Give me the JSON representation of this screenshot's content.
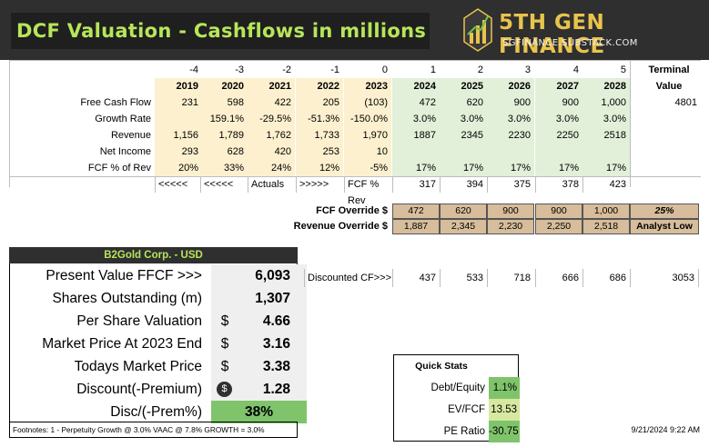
{
  "header": {
    "title": "DCF Valuation - Cashflows in millions",
    "brand": "5TH GEN FINANCE",
    "brand_url": "SGFINANCE.SUBSTACK.COM"
  },
  "periods": [
    "-4",
    "-3",
    "-2",
    "-1",
    "0",
    "1",
    "2",
    "3",
    "4",
    "5"
  ],
  "years": [
    "2019",
    "2020",
    "2021",
    "2022",
    "2023",
    "2024",
    "2025",
    "2026",
    "2027",
    "2028"
  ],
  "terminal": {
    "label1": "Terminal",
    "label2": "Value",
    "fcf": "4801"
  },
  "rows": [
    {
      "label": "Free Cash Flow",
      "values": [
        "231",
        "598",
        "422",
        "205",
        "(103)",
        "472",
        "620",
        "900",
        "900",
        "1,000"
      ]
    },
    {
      "label": "Growth Rate",
      "values": [
        "",
        "159.1%",
        "-29.5%",
        "-51.3%",
        "-150.0%",
        "3.0%",
        "3.0%",
        "3.0%",
        "3.0%",
        "3.0%"
      ]
    },
    {
      "label": "Revenue",
      "values": [
        "1,156",
        "1,789",
        "1,762",
        "1,733",
        "1,970",
        "1887",
        "2345",
        "2230",
        "2250",
        "2518"
      ]
    },
    {
      "label": "Net Income",
      "values": [
        "293",
        "628",
        "420",
        "253",
        "10",
        "",
        "",
        "",
        "",
        ""
      ]
    },
    {
      "label": "FCF % of Rev",
      "values": [
        "20%",
        "33%",
        "24%",
        "12%",
        "-5%",
        "17%",
        "17%",
        "17%",
        "17%",
        "17%"
      ]
    }
  ],
  "actuals_row": {
    "c1": "<<<<<",
    "c2": "<<<<<",
    "c3": "Actuals",
    "c4": ">>>>>",
    "c5": "FCF % Rev",
    "values": [
      "317",
      "394",
      "375",
      "378",
      "423"
    ]
  },
  "overrides": {
    "fcf_label": "FCF Override $",
    "fcf_values": [
      "472",
      "620",
      "900",
      "900",
      "1,000"
    ],
    "fcf_extra": "25%",
    "rev_label": "Revenue Override $",
    "rev_values": [
      "1,887",
      "2,345",
      "2,230",
      "2,250",
      "2,518"
    ],
    "rev_extra": "Analyst Low"
  },
  "company": {
    "title": "B2Gold Corp. - USD"
  },
  "valuation": [
    {
      "label": "Present Value FFCF >>>",
      "cur": "",
      "value": "6,093"
    },
    {
      "label": "Shares Outstanding (m)",
      "cur": "",
      "value": "1,307"
    },
    {
      "label": "Per Share Valuation",
      "cur": "$",
      "value": "4.66"
    },
    {
      "label": "Market Price At 2023 End",
      "cur": "$",
      "value": "3.16"
    },
    {
      "label": "Todays Market Price",
      "cur": "$",
      "value": "3.38"
    },
    {
      "label": "Discount(-Premium)",
      "cur": "$",
      "value": "1.28"
    },
    {
      "label": "Disc/(-Prem%)",
      "cur": "",
      "value": "38%"
    }
  ],
  "discounted": {
    "label": "Discounted CF>>>",
    "values": [
      "437",
      "533",
      "718",
      "666",
      "686"
    ],
    "terminal": "3053"
  },
  "quick_stats": {
    "title": "Quick Stats",
    "items": [
      {
        "label": "Debt/Equity",
        "value": "1.1%"
      },
      {
        "label": "EV/FCF",
        "value": "13.53"
      },
      {
        "label": "PE Ratio",
        "value": "-30.75"
      }
    ]
  },
  "footnote": "Footnotes: 1 - Perpetuity Growth @ 3.0% VAAC @ 7.8% GROWTH = 3.0%",
  "timestamp": "9/21/2024 9:22 AM",
  "colors": {
    "banner": "#2f2f2f",
    "title_green": "#b6e65a",
    "brand_gold": "#e9c44c",
    "actual_yellow": "#fdf0cf",
    "projection_green": "#e2efd9",
    "override_tan": "#d7bd9c"
  }
}
